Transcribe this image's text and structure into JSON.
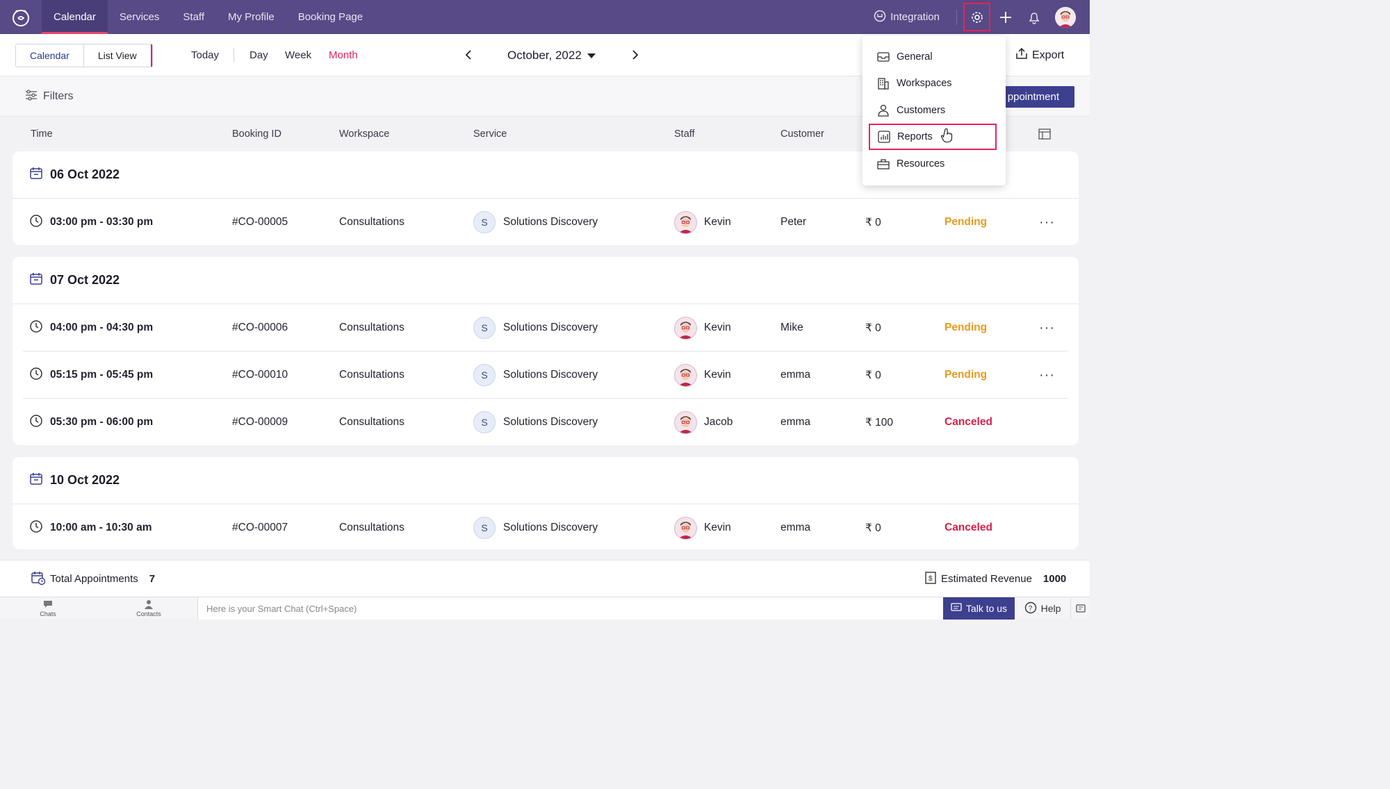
{
  "nav": {
    "items": [
      {
        "label": "Calendar"
      },
      {
        "label": "Services"
      },
      {
        "label": "Staff"
      },
      {
        "label": "My Profile"
      },
      {
        "label": "Booking Page"
      }
    ],
    "integration": "Integration"
  },
  "toolbar": {
    "view_calendar": "Calendar",
    "view_list": "List View",
    "today": "Today",
    "day": "Day",
    "week": "Week",
    "month": "Month",
    "current_month": "October, 2022",
    "export": "Export"
  },
  "filters": {
    "label": "Filters",
    "new_appointment": "ppointment"
  },
  "columns": {
    "time": "Time",
    "booking_id": "Booking ID",
    "workspace": "Workspace",
    "service": "Service",
    "staff": "Staff",
    "customer": "Customer"
  },
  "groups": [
    {
      "date": "06 Oct 2022",
      "rows": [
        {
          "time": "03:00 pm - 03:30 pm",
          "id": "#CO-00005",
          "workspace": "Consultations",
          "service_initial": "S",
          "service": "Solutions Discovery",
          "staff": "Kevin",
          "customer": "Peter",
          "amount": "₹ 0",
          "status": "Pending",
          "more": "···"
        }
      ]
    },
    {
      "date": "07 Oct 2022",
      "rows": [
        {
          "time": "04:00 pm - 04:30 pm",
          "id": "#CO-00006",
          "workspace": "Consultations",
          "service_initial": "S",
          "service": "Solutions Discovery",
          "staff": "Kevin",
          "customer": "Mike",
          "amount": "₹ 0",
          "status": "Pending",
          "more": "···"
        },
        {
          "time": "05:15 pm - 05:45 pm",
          "id": "#CO-00010",
          "workspace": "Consultations",
          "service_initial": "S",
          "service": "Solutions Discovery",
          "staff": "Kevin",
          "customer": "emma",
          "amount": "₹ 0",
          "status": "Pending",
          "more": "···"
        },
        {
          "time": "05:30 pm - 06:00 pm",
          "id": "#CO-00009",
          "workspace": "Consultations",
          "service_initial": "S",
          "service": "Solutions Discovery",
          "staff": "Jacob",
          "customer": "emma",
          "amount": "₹ 100",
          "status": "Canceled",
          "more": ""
        }
      ]
    },
    {
      "date": "10 Oct 2022",
      "rows": [
        {
          "time": "10:00 am - 10:30 am",
          "id": "#CO-00007",
          "workspace": "Consultations",
          "service_initial": "S",
          "service": "Solutions Discovery",
          "staff": "Kevin",
          "customer": "emma",
          "amount": "₹ 0",
          "status": "Canceled",
          "more": ""
        }
      ]
    }
  ],
  "summary": {
    "total_label": "Total Appointments",
    "total_value": "7",
    "revenue_label": "Estimated Revenue",
    "revenue_value": "1000"
  },
  "bottombar": {
    "chats": "Chats",
    "contacts": "Contacts",
    "smart_chat_placeholder": "Here is your Smart Chat (Ctrl+Space)",
    "talk": "Talk to us",
    "help": "Help"
  },
  "settings_menu": {
    "items": [
      {
        "label": "General",
        "icon": "inbox-icon"
      },
      {
        "label": "Workspaces",
        "icon": "building-icon"
      },
      {
        "label": "Customers",
        "icon": "person-icon"
      },
      {
        "label": "Reports",
        "icon": "bar-chart-icon"
      },
      {
        "label": "Resources",
        "icon": "briefcase-icon"
      }
    ]
  },
  "colors": {
    "nav_bg": "#574a86",
    "accent": "#e8225a",
    "pending": "#e89b1a",
    "canceled": "#d81f4a",
    "primary_button": "#3d3f8f"
  }
}
